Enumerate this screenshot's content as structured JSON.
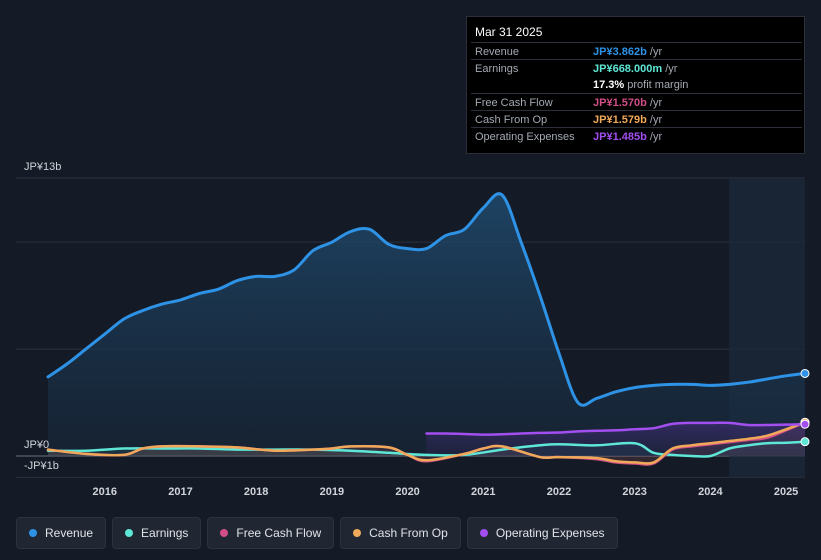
{
  "tooltip": {
    "date": "Mar 31 2025",
    "rows": [
      {
        "label": "Revenue",
        "value": "JP¥3.862b",
        "unit": "/yr",
        "color": "#2e93e6"
      },
      {
        "label": "Earnings",
        "value": "JP¥668.000m",
        "unit": "/yr",
        "color": "#5ee7d6"
      },
      {
        "label": "",
        "value": "17.3%",
        "unit": "profit margin",
        "color": "#ffffff"
      },
      {
        "label": "Free Cash Flow",
        "value": "JP¥1.570b",
        "unit": "/yr",
        "color": "#d14f86"
      },
      {
        "label": "Cash From Op",
        "value": "JP¥1.579b",
        "unit": "/yr",
        "color": "#f0a95a"
      },
      {
        "label": "Operating Expenses",
        "value": "JP¥1.485b",
        "unit": "/yr",
        "color": "#a34ff0"
      }
    ]
  },
  "legend": [
    {
      "label": "Revenue",
      "color": "#2e93e6"
    },
    {
      "label": "Earnings",
      "color": "#5ee7d6"
    },
    {
      "label": "Free Cash Flow",
      "color": "#d14f86"
    },
    {
      "label": "Cash From Op",
      "color": "#f0a95a"
    },
    {
      "label": "Operating Expenses",
      "color": "#a34ff0"
    }
  ],
  "chart_data": {
    "type": "line",
    "title": "",
    "xlabel": "",
    "ylabel": "",
    "y_tick_labels": [
      "JP¥13b",
      "JP¥0",
      "-JP¥1b"
    ],
    "ylim": [
      -1,
      13
    ],
    "xlim": [
      2015.25,
      2025.25
    ],
    "x_ticks": [
      "2016",
      "2017",
      "2018",
      "2019",
      "2020",
      "2021",
      "2022",
      "2023",
      "2024",
      "2025"
    ],
    "forecast_start": 2024.25,
    "series": [
      {
        "name": "Revenue",
        "color": "#2e93e6",
        "x": [
          2015.25,
          2015.5,
          2015.75,
          2016.0,
          2016.25,
          2016.5,
          2016.75,
          2017.0,
          2017.25,
          2017.5,
          2017.75,
          2018.0,
          2018.25,
          2018.5,
          2018.75,
          2019.0,
          2019.25,
          2019.5,
          2019.75,
          2020.0,
          2020.25,
          2020.5,
          2020.75,
          2021.0,
          2021.25,
          2021.5,
          2021.75,
          2022.0,
          2022.25,
          2022.5,
          2022.75,
          2023.0,
          2023.25,
          2023.5,
          2023.75,
          2024.0,
          2024.25,
          2024.5,
          2024.75,
          2025.0,
          2025.25
        ],
        "y": [
          3.7,
          4.3,
          5.0,
          5.7,
          6.4,
          6.8,
          7.1,
          7.3,
          7.6,
          7.8,
          8.2,
          8.4,
          8.4,
          8.7,
          9.6,
          10.0,
          10.5,
          10.6,
          9.9,
          9.7,
          9.7,
          10.3,
          10.6,
          11.6,
          12.2,
          10.0,
          7.5,
          4.8,
          2.5,
          2.7,
          3.0,
          3.2,
          3.3,
          3.35,
          3.35,
          3.3,
          3.35,
          3.45,
          3.6,
          3.75,
          3.86
        ]
      },
      {
        "name": "Earnings",
        "color": "#5ee7d6",
        "x": [
          2015.25,
          2015.75,
          2016.25,
          2016.75,
          2017.25,
          2017.75,
          2018.25,
          2018.75,
          2019.25,
          2019.75,
          2020.25,
          2020.75,
          2021.25,
          2021.75,
          2022.0,
          2022.5,
          2023.0,
          2023.25,
          2023.5,
          2023.75,
          2024.0,
          2024.25,
          2024.5,
          2024.75,
          2025.0,
          2025.25
        ],
        "y": [
          0.25,
          0.25,
          0.35,
          0.35,
          0.35,
          0.3,
          0.3,
          0.3,
          0.25,
          0.15,
          0.05,
          0.05,
          0.3,
          0.5,
          0.55,
          0.5,
          0.6,
          0.15,
          0.05,
          0.0,
          0.0,
          0.35,
          0.5,
          0.6,
          0.62,
          0.67
        ]
      },
      {
        "name": "Free Cash Flow",
        "color": "#d14f86",
        "x": [
          2015.25,
          2015.75,
          2016.25,
          2016.5,
          2016.75,
          2017.25,
          2017.75,
          2018.25,
          2018.75,
          2019.0,
          2019.25,
          2019.75,
          2020.0,
          2020.25,
          2020.75,
          2021.0,
          2021.25,
          2021.75,
          2022.0,
          2022.5,
          2022.75,
          2023.0,
          2023.25,
          2023.5,
          2023.75,
          2024.0,
          2024.25,
          2024.5,
          2024.75,
          2025.0,
          2025.25
        ],
        "y": [
          0.3,
          0.1,
          0.05,
          0.35,
          0.45,
          0.45,
          0.4,
          0.25,
          0.3,
          0.35,
          0.45,
          0.4,
          0.05,
          -0.25,
          0.1,
          0.35,
          0.45,
          -0.05,
          -0.05,
          -0.15,
          -0.3,
          -0.35,
          -0.35,
          0.3,
          0.45,
          0.55,
          0.65,
          0.75,
          0.85,
          1.2,
          1.57
        ]
      },
      {
        "name": "Cash From Op",
        "color": "#f0a95a",
        "x": [
          2015.25,
          2015.75,
          2016.25,
          2016.5,
          2016.75,
          2017.25,
          2017.75,
          2018.25,
          2018.75,
          2019.0,
          2019.25,
          2019.75,
          2020.0,
          2020.25,
          2020.75,
          2021.0,
          2021.25,
          2021.75,
          2022.0,
          2022.5,
          2022.75,
          2023.0,
          2023.25,
          2023.5,
          2023.75,
          2024.0,
          2024.25,
          2024.5,
          2024.75,
          2025.0,
          2025.25
        ],
        "y": [
          0.3,
          0.1,
          0.05,
          0.35,
          0.45,
          0.45,
          0.4,
          0.25,
          0.3,
          0.35,
          0.45,
          0.4,
          0.05,
          -0.2,
          0.1,
          0.35,
          0.45,
          -0.05,
          -0.05,
          -0.1,
          -0.25,
          -0.3,
          -0.3,
          0.35,
          0.5,
          0.6,
          0.7,
          0.8,
          0.95,
          1.25,
          1.58
        ]
      },
      {
        "name": "Operating Expenses",
        "color": "#a34ff0",
        "x": [
          2020.25,
          2020.5,
          2020.75,
          2021.0,
          2021.25,
          2021.5,
          2021.75,
          2022.0,
          2022.25,
          2022.5,
          2022.75,
          2023.0,
          2023.25,
          2023.5,
          2023.75,
          2024.0,
          2024.25,
          2024.5,
          2024.75,
          2025.0,
          2025.25
        ],
        "y": [
          1.05,
          1.05,
          1.03,
          1.0,
          1.02,
          1.05,
          1.08,
          1.1,
          1.15,
          1.18,
          1.2,
          1.25,
          1.3,
          1.5,
          1.55,
          1.55,
          1.55,
          1.45,
          1.45,
          1.47,
          1.485
        ]
      }
    ]
  }
}
